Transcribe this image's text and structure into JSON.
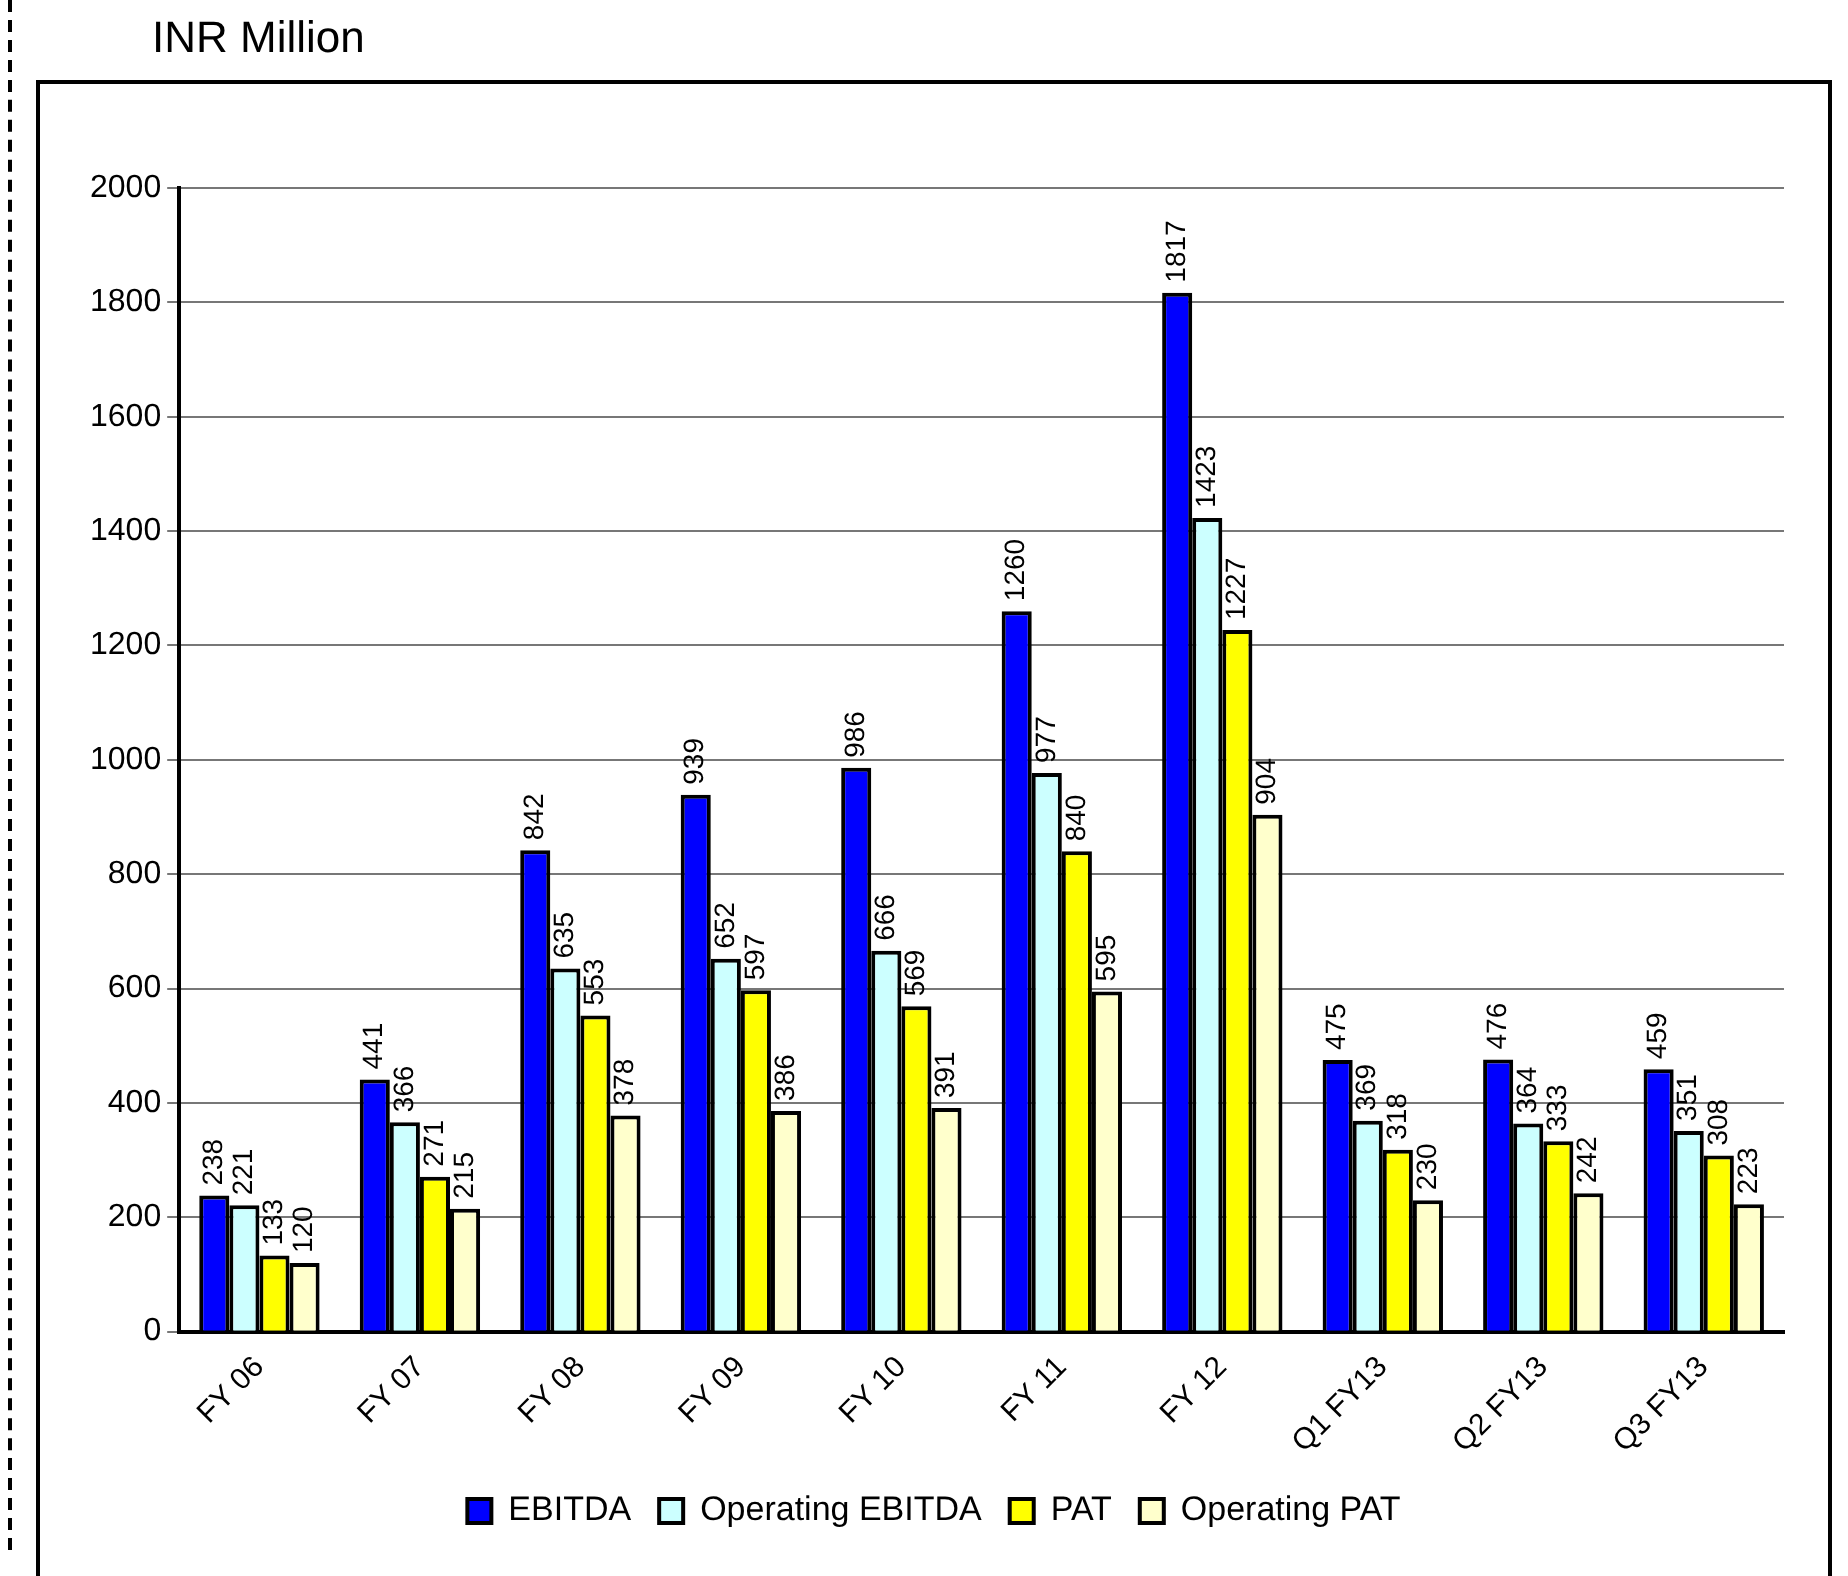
{
  "chart_data": {
    "type": "bar",
    "title": "INR Million",
    "categories": [
      "FY 06",
      "FY 07",
      "FY 08",
      "FY 09",
      "FY 10",
      "FY 11",
      "FY 12",
      "Q1 FY13",
      "Q2 FY13",
      "Q3 FY13"
    ],
    "series": [
      {
        "name": "EBITDA",
        "color": "#0000ff",
        "values": [
          238,
          441,
          842,
          939,
          986,
          1260,
          1817,
          475,
          476,
          459
        ]
      },
      {
        "name": "Operating EBITDA",
        "color": "#ccffff",
        "values": [
          221,
          366,
          635,
          652,
          666,
          977,
          1423,
          369,
          364,
          351
        ]
      },
      {
        "name": "PAT",
        "color": "#ffff00",
        "values": [
          133,
          271,
          553,
          597,
          569,
          840,
          1227,
          318,
          333,
          308
        ]
      },
      {
        "name": "Operating PAT",
        "color": "#ffffcc",
        "values": [
          120,
          215,
          378,
          386,
          391,
          595,
          904,
          230,
          242,
          223
        ]
      }
    ],
    "ylim": [
      0,
      2000
    ],
    "yticks": [
      0,
      200,
      400,
      600,
      800,
      1000,
      1200,
      1400,
      1600,
      1800,
      2000
    ],
    "grid": "y",
    "legend": "bottom",
    "data_labels": true
  }
}
